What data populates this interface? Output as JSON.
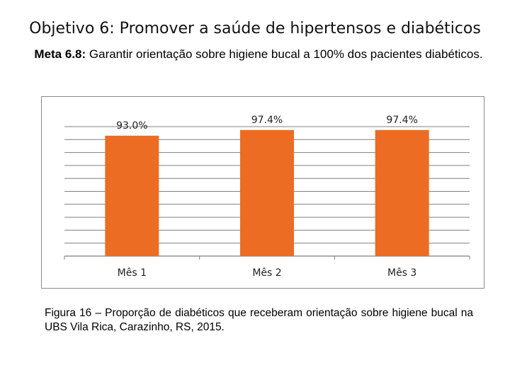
{
  "slide": {
    "title": "Objetivo 6: Promover a saúde de hipertensos e diabéticos",
    "goal_label": "Meta 6.8:",
    "goal_text": "Garantir orientação sobre higiene bucal a 100% dos pacientes diabéticos."
  },
  "caption": "Figura 16 – Proporção de diabéticos que receberam orientação sobre higiene bucal na UBS Vila Rica, Carazinho, RS, 2015.",
  "colors": {
    "bar": "#ED6C23",
    "grid": "#7f7f7f",
    "text": "#222222"
  },
  "chart_data": {
    "type": "bar",
    "categories": [
      "Mês 1",
      "Mês 2",
      "Mês 3"
    ],
    "values": [
      93.0,
      97.4,
      97.4
    ],
    "data_labels": [
      "93.0%",
      "97.4%",
      "97.4%"
    ],
    "title": "",
    "xlabel": "",
    "ylabel": "",
    "ylim": [
      0,
      100
    ],
    "grid": true,
    "legend": "none"
  }
}
